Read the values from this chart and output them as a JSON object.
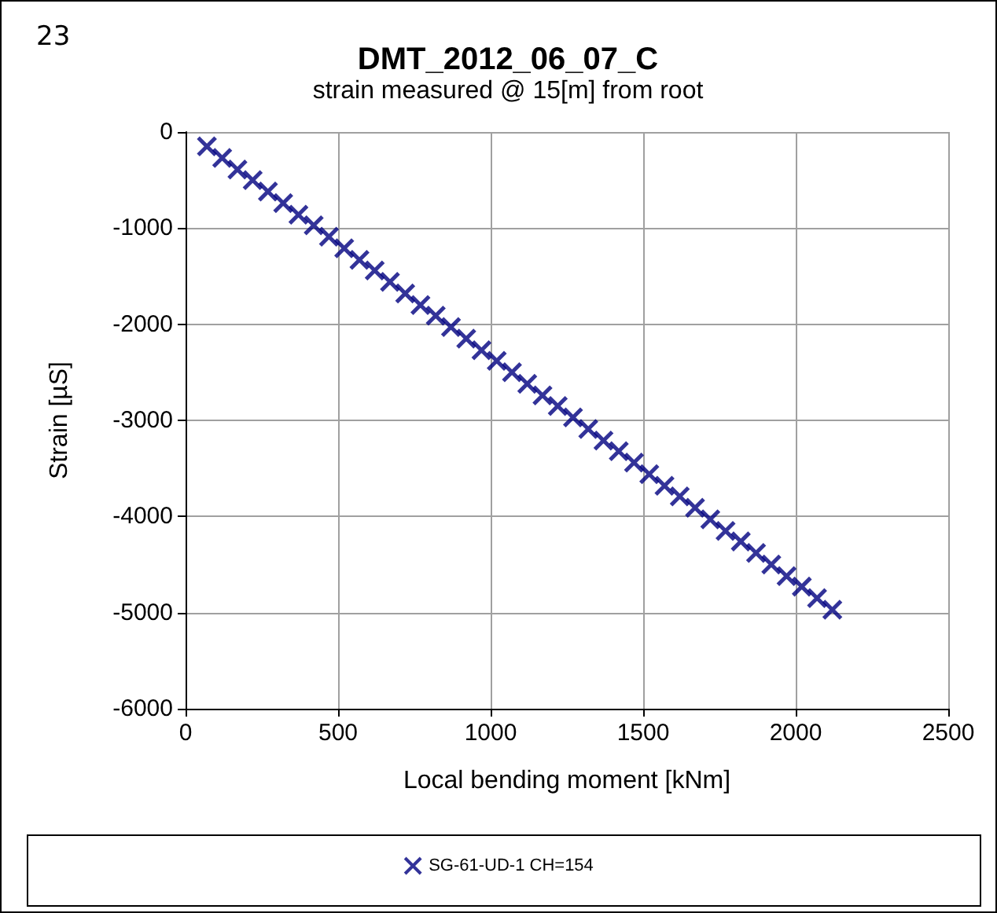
{
  "chart_data": {
    "type": "scatter",
    "title": "DMT_2012_06_07_C",
    "subtitle": "strain measured @ 15[m] from root",
    "xlabel": "Local bending moment [kNm]",
    "ylabel": "Strain [µS]",
    "annotations": [
      "23"
    ],
    "x": [
      70,
      120,
      170,
      220,
      270,
      320,
      370,
      420,
      470,
      520,
      570,
      620,
      670,
      720,
      770,
      820,
      870,
      920,
      970,
      1020,
      1070,
      1120,
      1170,
      1220,
      1270,
      1320,
      1370,
      1420,
      1470,
      1520,
      1570,
      1620,
      1670,
      1720,
      1770,
      1820,
      1870,
      1920,
      1970,
      2020,
      2070,
      2120
    ],
    "series": [
      {
        "name": "SG-61-UD-1 CH=154",
        "color": "#000080",
        "values": [
          -150,
          -270,
          -390,
          -500,
          -620,
          -740,
          -860,
          -970,
          -1090,
          -1210,
          -1330,
          -1440,
          -1560,
          -1680,
          -1800,
          -1910,
          -2030,
          -2150,
          -2270,
          -2380,
          -2500,
          -2620,
          -2740,
          -2850,
          -2970,
          -3090,
          -3210,
          -3320,
          -3440,
          -3560,
          -3680,
          -3790,
          -3910,
          -4030,
          -4150,
          -4260,
          -4380,
          -4500,
          -4620,
          -4730,
          -4850,
          -4970
        ]
      }
    ],
    "xlim": [
      0,
      2500
    ],
    "xticks": [
      0,
      500,
      1000,
      1500,
      2000,
      2500
    ],
    "ylim": [
      -6000,
      0
    ],
    "yticks": [
      -6000,
      -5000,
      -4000,
      -3000,
      -2000,
      -1000,
      0
    ],
    "grid": true,
    "legend": "bottom",
    "marker": "cross"
  }
}
